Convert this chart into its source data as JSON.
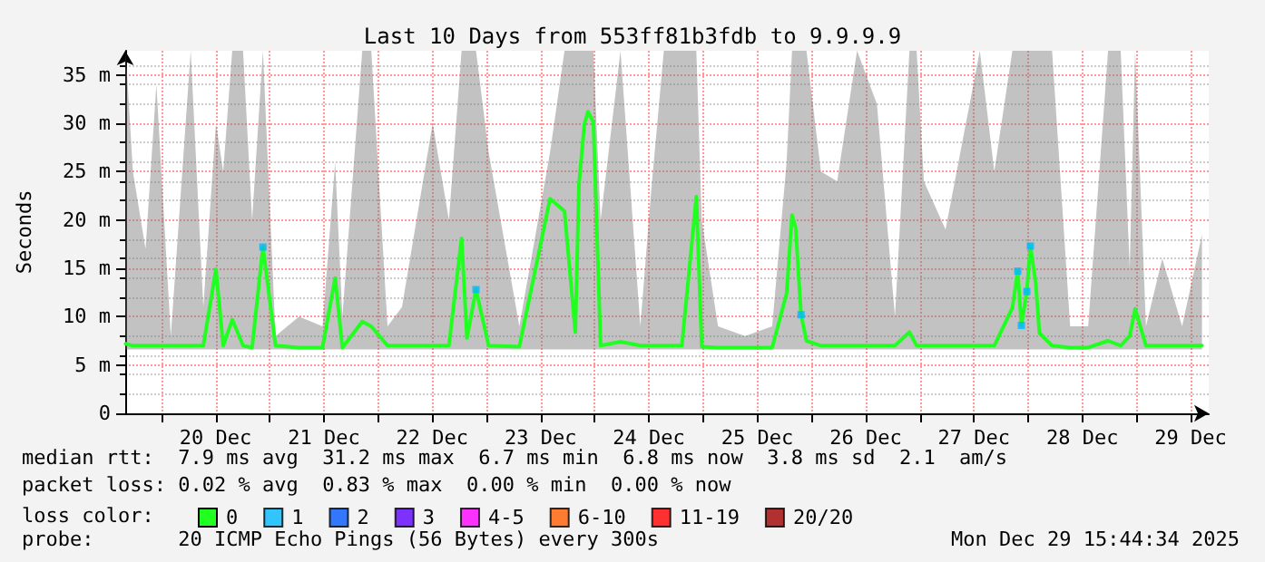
{
  "chart_data": {
    "type": "line",
    "title": "Last 10 Days from 553ff81b3fdb to 9.9.9.9",
    "ylabel": "Seconds",
    "legend_title": "loss color:",
    "legend": "bottom",
    "grid": true,
    "marker": "none",
    "xlim": [
      "2025-12-19T16:00",
      "2025-12-29T16:00"
    ],
    "xticks": [
      {
        "value": "2025-12-20T00:00",
        "label": null
      },
      {
        "value": "2025-12-20T12:00",
        "label": "20 Dec"
      },
      {
        "value": "2025-12-21T00:00",
        "label": null
      },
      {
        "value": "2025-12-21T12:00",
        "label": "21 Dec"
      },
      {
        "value": "2025-12-22T00:00",
        "label": null
      },
      {
        "value": "2025-12-22T12:00",
        "label": "22 Dec"
      },
      {
        "value": "2025-12-23T00:00",
        "label": null
      },
      {
        "value": "2025-12-23T12:00",
        "label": "23 Dec"
      },
      {
        "value": "2025-12-24T00:00",
        "label": null
      },
      {
        "value": "2025-12-24T12:00",
        "label": "24 Dec"
      },
      {
        "value": "2025-12-25T00:00",
        "label": null
      },
      {
        "value": "2025-12-25T12:00",
        "label": "25 Dec"
      },
      {
        "value": "2025-12-26T00:00",
        "label": null
      },
      {
        "value": "2025-12-26T12:00",
        "label": "26 Dec"
      },
      {
        "value": "2025-12-27T00:00",
        "label": null
      },
      {
        "value": "2025-12-27T12:00",
        "label": "27 Dec"
      },
      {
        "value": "2025-12-28T00:00",
        "label": null
      },
      {
        "value": "2025-12-28T12:00",
        "label": "28 Dec"
      },
      {
        "value": "2025-12-29T00:00",
        "label": null
      },
      {
        "value": "2025-12-29T12:00",
        "label": "29 Dec"
      }
    ],
    "ylim": [
      0,
      37.5
    ],
    "yticks": [
      0,
      {
        "value": 5,
        "label": "5 m"
      },
      {
        "value": 10,
        "label": "10 m"
      },
      {
        "value": 15,
        "label": "15 m"
      },
      {
        "value": 20,
        "label": "20 m"
      },
      {
        "value": 25,
        "label": "25 m"
      },
      {
        "value": 30,
        "label": "30 m"
      },
      {
        "value": 35,
        "label": "35 m"
      }
    ],
    "series": [
      {
        "name": "0",
        "color": "#20ff20",
        "x": [
          "2025-12-19T16:06",
          "2025-12-19T17:42",
          "2025-12-19T20:30",
          "2025-12-19T22:54",
          "2025-12-20T02:06",
          "2025-12-20T06:30",
          "2025-12-20T09:18",
          "2025-12-20T12:06",
          "2025-12-20T13:42",
          "2025-12-20T15:42",
          "2025-12-20T18:06",
          "2025-12-20T20:06",
          "2025-12-20T22:30",
          "2025-12-21T01:18",
          "2025-12-21T06:30",
          "2025-12-21T11:42",
          "2025-12-21T14:30",
          "2025-12-21T16:06",
          "2025-12-21T20:30",
          "2025-12-21T22:30",
          "2025-12-22T02:06",
          "2025-12-22T05:18",
          "2025-12-22T12:06",
          "2025-12-22T15:42",
          "2025-12-22T18:30",
          "2025-12-22T19:42",
          "2025-12-22T21:42",
          "2025-12-23T00:30",
          "2025-12-23T07:18",
          "2025-12-23T14:06",
          "2025-12-23T17:18",
          "2025-12-23T19:42",
          "2025-12-23T20:30",
          "2025-12-23T21:42",
          "2025-12-23T22:30",
          "2025-12-23T23:42",
          "2025-12-24T01:18",
          "2025-12-24T05:42",
          "2025-12-24T10:06",
          "2025-12-24T12:30",
          "2025-12-24T15:18",
          "2025-12-24T19:18",
          "2025-12-24T22:30",
          "2025-12-24T23:42",
          "2025-12-25T03:18",
          "2025-12-25T09:18",
          "2025-12-25T15:18",
          "2025-12-25T18:30",
          "2025-12-25T19:42",
          "2025-12-25T20:30",
          "2025-12-25T21:42",
          "2025-12-25T22:54",
          "2025-12-26T02:06",
          "2025-12-26T05:42",
          "2025-12-26T10:06",
          "2025-12-26T14:30",
          "2025-12-26T18:30",
          "2025-12-26T21:42",
          "2025-12-26T23:18",
          "2025-12-27T00:54",
          "2025-12-27T05:42",
          "2025-12-27T13:18",
          "2025-12-27T16:30",
          "2025-12-27T20:30",
          "2025-12-27T21:42",
          "2025-12-27T22:30",
          "2025-12-27T23:42",
          "2025-12-28T00:30",
          "2025-12-28T01:42",
          "2025-12-28T02:30",
          "2025-12-28T05:18",
          "2025-12-28T09:18",
          "2025-12-28T13:18",
          "2025-12-28T17:42",
          "2025-12-28T20:30",
          "2025-12-28T22:30",
          "2025-12-28T23:42",
          "2025-12-29T02:06",
          "2025-12-29T05:42",
          "2025-12-29T10:06",
          "2025-12-29T14:30"
        ],
        "values": [
          7.2,
          7,
          7,
          7,
          7,
          7,
          7,
          14.9,
          7,
          9.7,
          7,
          6.8,
          17.2,
          7,
          6.8,
          6.8,
          14,
          6.8,
          9.5,
          9,
          7,
          7,
          7,
          7,
          18.1,
          7.8,
          12.8,
          7,
          6.9,
          22.2,
          20.9,
          8.4,
          23.6,
          29.9,
          31.2,
          30.1,
          7,
          7.4,
          7,
          7,
          7,
          7,
          22.4,
          6.9,
          6.8,
          6.8,
          6.8,
          12.4,
          20.5,
          19.2,
          10.2,
          7.5,
          7,
          7,
          7,
          7,
          7,
          8.4,
          7,
          7,
          7,
          7,
          7,
          10.9,
          14.7,
          9.1,
          12.6,
          17.3,
          13.4,
          8.3,
          7,
          6.8,
          6.8,
          7.5,
          7,
          8,
          10.8,
          7,
          7,
          7,
          7
        ],
        "lower": [
          6.6,
          6.6,
          6.6,
          6.6,
          6.6,
          6.6,
          6.6,
          6.6,
          6.6,
          6.6,
          6.6,
          6.6,
          6.6,
          6.6,
          6.6,
          6.6,
          6.6,
          6.6,
          6.6,
          6.6,
          6.6,
          6.6,
          6.6,
          6.6,
          6.6,
          6.6,
          6.6,
          6.6,
          6.6,
          6.6,
          6.6,
          6.6,
          6.6,
          6.6,
          6.6,
          6.6,
          6.6,
          6.6,
          6.6,
          6.6,
          6.6,
          6.6,
          6.6,
          6.6,
          6.6,
          6.6,
          6.6,
          6.6,
          6.6,
          6.6,
          6.6,
          6.6,
          6.6,
          6.6,
          6.6,
          6.6,
          6.6,
          6.6,
          6.6,
          6.6,
          6.6,
          6.6,
          6.6,
          6.6,
          6.6,
          6.6,
          6.6,
          6.6,
          6.6,
          6.6,
          6.6,
          6.6,
          6.6,
          6.6,
          6.6,
          6.6,
          6.6,
          6.6,
          6.6,
          6.6,
          6.6
        ],
        "upper": [
          37.5,
          25,
          17,
          34,
          8,
          37.5,
          11,
          30,
          25,
          37.5,
          37.5,
          20,
          37.5,
          8,
          10,
          9,
          26,
          10,
          37.5,
          37.5,
          9,
          11,
          30,
          20,
          37.5,
          37.5,
          37.5,
          27,
          9,
          27,
          37.5,
          37.5,
          37.5,
          37.5,
          37.5,
          37.5,
          20,
          37.5,
          9,
          23,
          37.5,
          37.5,
          37.5,
          20,
          9,
          8,
          9,
          26,
          37.5,
          37.5,
          37.5,
          37.5,
          25,
          24,
          37.5,
          32,
          10,
          37.5,
          37.5,
          24,
          19,
          37.5,
          25,
          37.5,
          37.5,
          37.5,
          37.5,
          37.5,
          37.5,
          37.5,
          37.5,
          9,
          9,
          37.5,
          37.5,
          15,
          37.5,
          9,
          16,
          9,
          18.5
        ]
      },
      {
        "name": "1",
        "color": "#00b8ff",
        "type": "scatter",
        "marker": "square",
        "x": [
          "2025-12-20T22:30",
          "2025-12-22T21:42",
          "2025-12-25T21:42",
          "2025-12-27T21:42",
          "2025-12-27T22:30",
          "2025-12-27T23:42",
          "2025-12-28T00:30"
        ],
        "values": [
          17.2,
          12.8,
          10.2,
          14.7,
          9.1,
          12.6,
          17.3
        ]
      },
      {
        "name": "2",
        "color": "#0059ff",
        "type": "scatter",
        "marker": "square"
      },
      {
        "name": "3",
        "color": "#5e00ff",
        "type": "scatter",
        "marker": "square"
      },
      {
        "name": "4-5",
        "color": "#ff00ff",
        "type": "scatter",
        "marker": "square"
      },
      {
        "name": "6-10",
        "color": "#ff5e00",
        "type": "scatter",
        "marker": "square"
      },
      {
        "name": "11-19",
        "color": "#ff0000",
        "type": "scatter",
        "marker": "square"
      },
      {
        "name": "20/20",
        "color": "#a00000",
        "type": "scatter",
        "marker": "square"
      }
    ],
    "annotations": [
      "median rtt:  7.9 ms avg  31.2 ms max  6.7 ms min  6.8 ms now  3.8 ms sd  2.1  am/s",
      "packet loss: 0.02 % avg  0.83 % max  0.00 % min  0.00 % now",
      "probe:       20 ICMP Echo Pings (56 Bytes) every 300s",
      "Mon Dec 29 15:44:34 2025"
    ]
  }
}
